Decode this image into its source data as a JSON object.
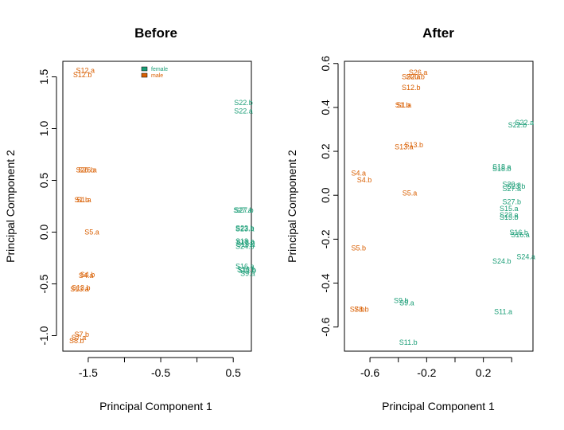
{
  "colors": {
    "female": "#1b9e77",
    "male": "#d95f02",
    "axis": "#000000"
  },
  "chart_data": [
    {
      "type": "scatter",
      "title": "Before",
      "xlabel": "Principal Component 1",
      "ylabel": "Principal Component 2",
      "xlim": [
        -1.85,
        0.75
      ],
      "ylim": [
        -1.15,
        1.65
      ],
      "xticks": [
        {
          "v": -1.5,
          "label": "-1.5"
        },
        {
          "v": -1.0,
          "label": ""
        },
        {
          "v": -0.5,
          "label": "-0.5"
        },
        {
          "v": 0.0,
          "label": ""
        },
        {
          "v": 0.5,
          "label": "0.5"
        }
      ],
      "yticks": [
        {
          "v": -1.0,
          "label": "-1.0"
        },
        {
          "v": -0.5,
          "label": "-0.5"
        },
        {
          "v": 0.0,
          "label": "0.0"
        },
        {
          "v": 0.5,
          "label": "0.5"
        },
        {
          "v": 1.0,
          "label": "1.0"
        },
        {
          "v": 1.5,
          "label": "1.5"
        }
      ],
      "legend": {
        "position": "top-center",
        "entries": [
          {
            "label": "female",
            "group": "female"
          },
          {
            "label": "male",
            "group": "male"
          }
        ]
      },
      "points": [
        {
          "label": "S12.a",
          "x": -1.54,
          "y": 1.56,
          "group": "male"
        },
        {
          "label": "S12.b",
          "x": -1.58,
          "y": 1.52,
          "group": "male"
        },
        {
          "label": "S22.b",
          "x": 0.64,
          "y": 1.25,
          "group": "female"
        },
        {
          "label": "S22.a",
          "x": 0.64,
          "y": 1.17,
          "group": "female"
        },
        {
          "label": "S26.a",
          "x": -1.51,
          "y": 0.6,
          "group": "male"
        },
        {
          "label": "S20.b",
          "x": -1.54,
          "y": 0.6,
          "group": "male"
        },
        {
          "label": "S1.a",
          "x": -1.56,
          "y": 0.31,
          "group": "male"
        },
        {
          "label": "S1.b",
          "x": -1.59,
          "y": 0.31,
          "group": "male"
        },
        {
          "label": "S27.b",
          "x": 0.65,
          "y": 0.21,
          "group": "female"
        },
        {
          "label": "S27.a",
          "x": 0.63,
          "y": 0.21,
          "group": "female"
        },
        {
          "label": "S5.a",
          "x": -1.45,
          "y": 0.0,
          "group": "male"
        },
        {
          "label": "S23.b",
          "x": 0.66,
          "y": 0.04,
          "group": "female"
        },
        {
          "label": "S23.a",
          "x": 0.66,
          "y": 0.03,
          "group": "female"
        },
        {
          "label": "S18.a",
          "x": 0.66,
          "y": -0.09,
          "group": "female"
        },
        {
          "label": "S18.b",
          "x": 0.67,
          "y": -0.1,
          "group": "female"
        },
        {
          "label": "S15.a",
          "x": 0.67,
          "y": -0.12,
          "group": "female"
        },
        {
          "label": "S24.b",
          "x": 0.66,
          "y": -0.14,
          "group": "female"
        },
        {
          "label": "S16.a",
          "x": 0.66,
          "y": -0.33,
          "group": "female"
        },
        {
          "label": "S16.b",
          "x": 0.68,
          "y": -0.36,
          "group": "female"
        },
        {
          "label": "S11.b",
          "x": 0.69,
          "y": -0.37,
          "group": "female"
        },
        {
          "label": "S9.a",
          "x": 0.7,
          "y": -0.4,
          "group": "female"
        },
        {
          "label": "S4.b",
          "x": -1.51,
          "y": -0.41,
          "group": "male"
        },
        {
          "label": "S4.a",
          "x": -1.53,
          "y": -0.42,
          "group": "male"
        },
        {
          "label": "S13.a",
          "x": -1.62,
          "y": -0.55,
          "group": "male"
        },
        {
          "label": "S13.b",
          "x": -1.6,
          "y": -0.54,
          "group": "male"
        },
        {
          "label": "S7.b",
          "x": -1.59,
          "y": -0.99,
          "group": "male"
        },
        {
          "label": "S7.a",
          "x": -1.63,
          "y": -1.02,
          "group": "male"
        },
        {
          "label": "S8.b",
          "x": -1.66,
          "y": -1.05,
          "group": "male"
        }
      ]
    },
    {
      "type": "scatter",
      "title": "After",
      "xlabel": "Principal Component 1",
      "ylabel": "Principal Component 2",
      "xlim": [
        -0.78,
        0.55
      ],
      "ylim": [
        -0.71,
        0.61
      ],
      "xticks": [
        {
          "v": -0.6,
          "label": "-0.6"
        },
        {
          "v": -0.4,
          "label": ""
        },
        {
          "v": -0.2,
          "label": "-0.2"
        },
        {
          "v": 0.0,
          "label": ""
        },
        {
          "v": 0.2,
          "label": "0.2"
        },
        {
          "v": 0.4,
          "label": ""
        }
      ],
      "yticks": [
        {
          "v": -0.6,
          "label": "-0.6"
        },
        {
          "v": -0.4,
          "label": "-0.4"
        },
        {
          "v": -0.2,
          "label": "-0.2"
        },
        {
          "v": 0.0,
          "label": "0.0"
        },
        {
          "v": 0.2,
          "label": "0.2"
        },
        {
          "v": 0.4,
          "label": "0.4"
        },
        {
          "v": 0.6,
          "label": "0.6"
        }
      ],
      "legend": null,
      "points": [
        {
          "label": "S26.a",
          "x": -0.26,
          "y": 0.56,
          "group": "male"
        },
        {
          "label": "S20.b",
          "x": -0.28,
          "y": 0.54,
          "group": "male"
        },
        {
          "label": "S20.a",
          "x": -0.31,
          "y": 0.54,
          "group": "male"
        },
        {
          "label": "S12.b",
          "x": -0.31,
          "y": 0.49,
          "group": "male"
        },
        {
          "label": "S1.a",
          "x": -0.36,
          "y": 0.41,
          "group": "male"
        },
        {
          "label": "S1.b",
          "x": -0.37,
          "y": 0.41,
          "group": "male"
        },
        {
          "label": "S22.a",
          "x": 0.49,
          "y": 0.33,
          "group": "female"
        },
        {
          "label": "S22.b",
          "x": 0.44,
          "y": 0.32,
          "group": "female"
        },
        {
          "label": "S13.b",
          "x": -0.29,
          "y": 0.23,
          "group": "male"
        },
        {
          "label": "S13.a",
          "x": -0.36,
          "y": 0.22,
          "group": "male"
        },
        {
          "label": "S18.a",
          "x": 0.33,
          "y": 0.13,
          "group": "female"
        },
        {
          "label": "S18.b",
          "x": 0.33,
          "y": 0.12,
          "group": "female"
        },
        {
          "label": "S4.a",
          "x": -0.68,
          "y": 0.1,
          "group": "male"
        },
        {
          "label": "S4.b",
          "x": -0.64,
          "y": 0.07,
          "group": "male"
        },
        {
          "label": "S20.a",
          "x": 0.4,
          "y": 0.05,
          "group": "female"
        },
        {
          "label": "S23.b",
          "x": 0.43,
          "y": 0.04,
          "group": "female"
        },
        {
          "label": "S27.a",
          "x": 0.4,
          "y": 0.03,
          "group": "female"
        },
        {
          "label": "S5.a",
          "x": -0.32,
          "y": 0.01,
          "group": "male"
        },
        {
          "label": "S27.b",
          "x": 0.4,
          "y": -0.03,
          "group": "female"
        },
        {
          "label": "S15.a",
          "x": 0.38,
          "y": -0.06,
          "group": "female"
        },
        {
          "label": "S23.a",
          "x": 0.38,
          "y": -0.09,
          "group": "female"
        },
        {
          "label": "S15.b",
          "x": 0.38,
          "y": -0.1,
          "group": "female"
        },
        {
          "label": "S16.b",
          "x": 0.45,
          "y": -0.17,
          "group": "female"
        },
        {
          "label": "S16.a",
          "x": 0.46,
          "y": -0.18,
          "group": "female"
        },
        {
          "label": "S5.b",
          "x": -0.68,
          "y": -0.24,
          "group": "male"
        },
        {
          "label": "S24.a",
          "x": 0.5,
          "y": -0.28,
          "group": "female"
        },
        {
          "label": "S24.b",
          "x": 0.33,
          "y": -0.3,
          "group": "female"
        },
        {
          "label": "S9.b",
          "x": -0.38,
          "y": -0.48,
          "group": "female"
        },
        {
          "label": "S9.a",
          "x": -0.34,
          "y": -0.49,
          "group": "female"
        },
        {
          "label": "S7.b",
          "x": -0.69,
          "y": -0.52,
          "group": "male"
        },
        {
          "label": "S8.b",
          "x": -0.66,
          "y": -0.52,
          "group": "male"
        },
        {
          "label": "S11.a",
          "x": 0.34,
          "y": -0.53,
          "group": "female"
        },
        {
          "label": "S11.b",
          "x": -0.33,
          "y": -0.67,
          "group": "female"
        }
      ]
    }
  ]
}
